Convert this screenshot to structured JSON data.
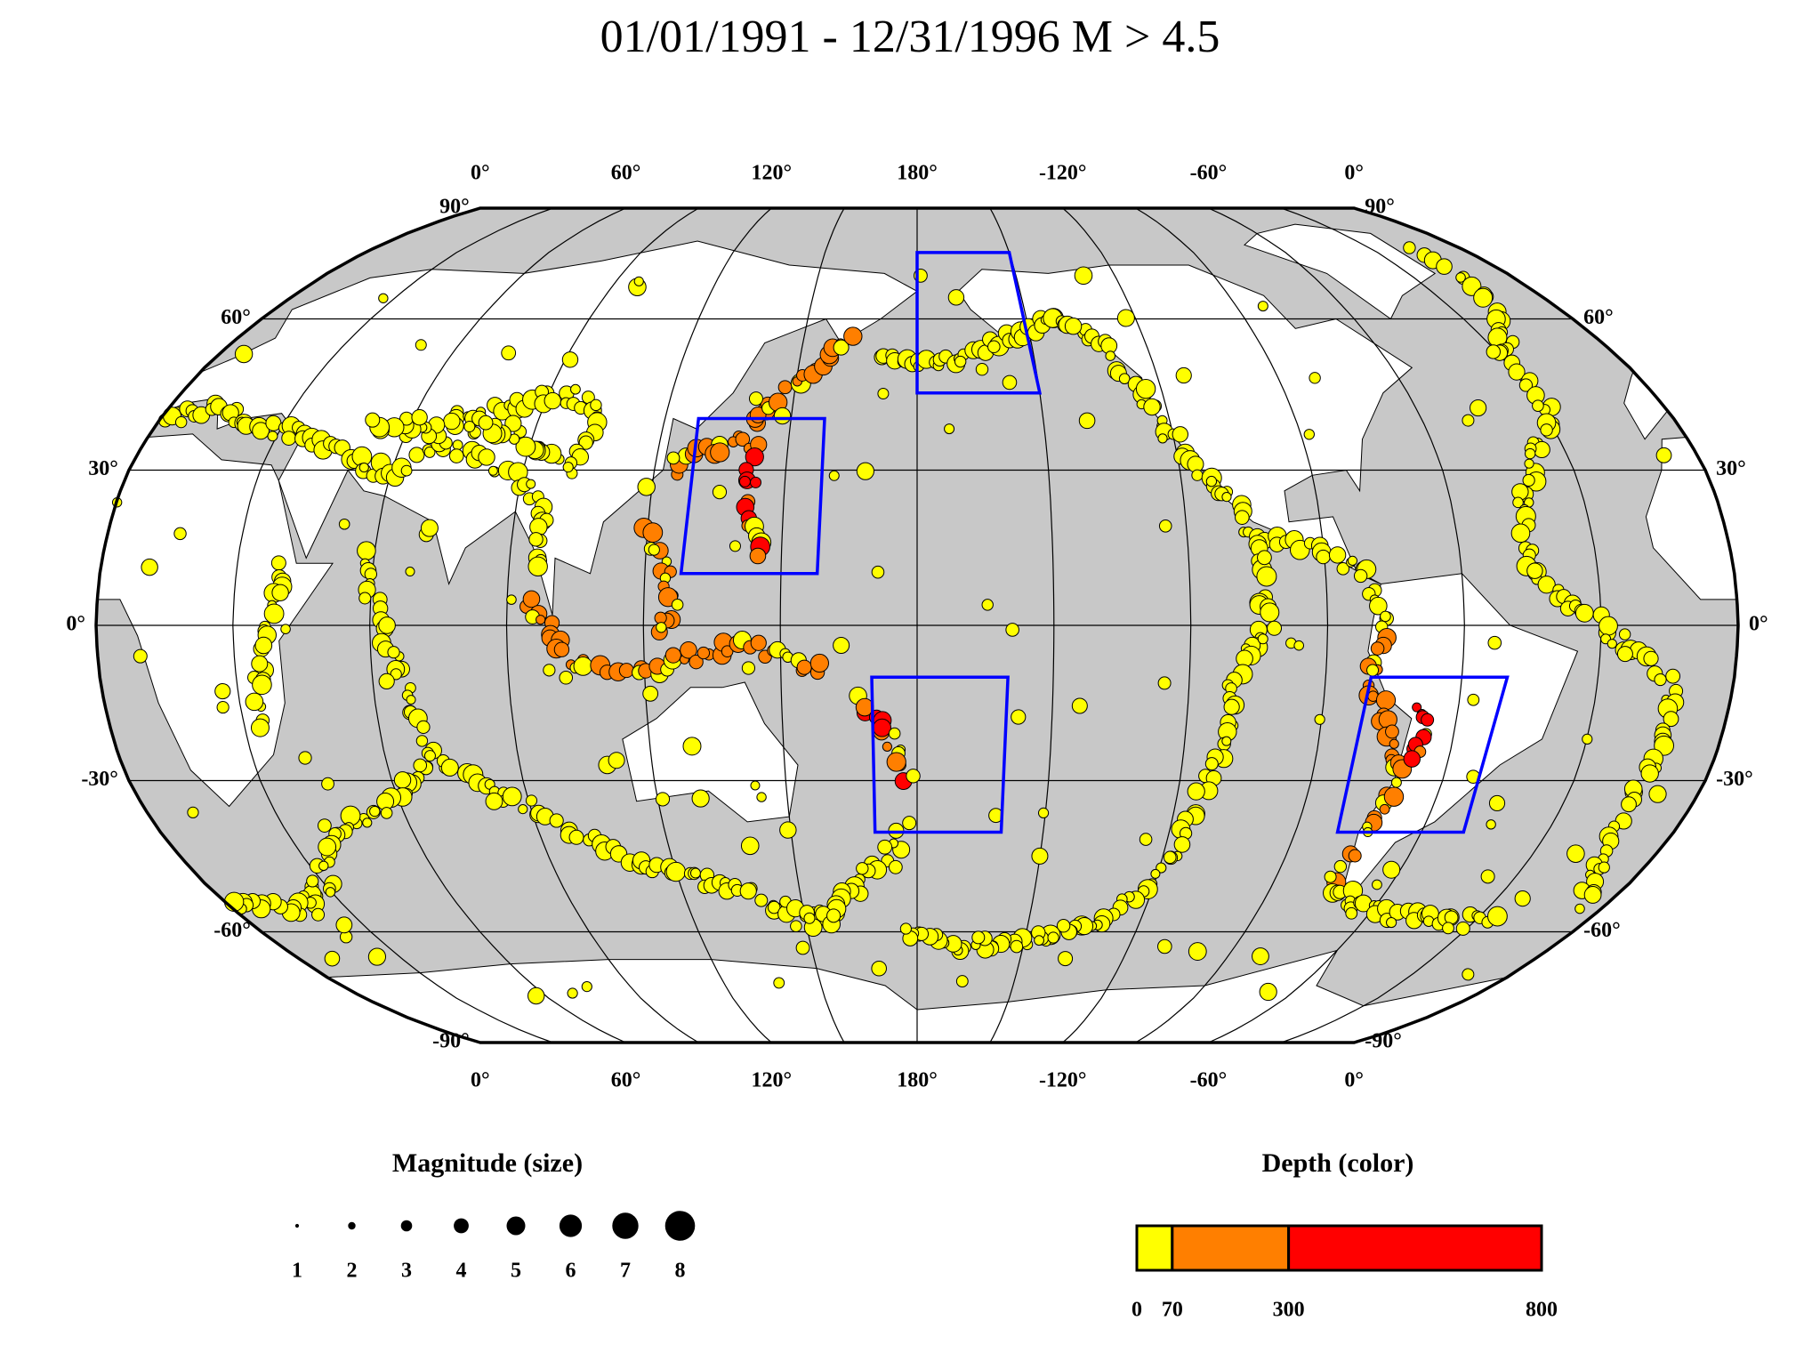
{
  "title": "01/01/1991 - 12/31/1996 M > 4.5",
  "map": {
    "longitude_labels": [
      "0°",
      "60°",
      "120°",
      "180°",
      "-120°",
      "-60°",
      "0°"
    ],
    "latitude_labels": [
      "90°",
      "60°",
      "30°",
      "0°",
      "-30°",
      "-60°",
      "-90°"
    ]
  },
  "magnitude_legend": {
    "title": "Magnitude (size)",
    "sizes": [
      1,
      2,
      3,
      4,
      5,
      6,
      7,
      8
    ]
  },
  "depth_legend": {
    "title": "Depth (color)",
    "breaks": [
      0,
      70,
      300,
      800
    ],
    "colors": [
      "#ffff00",
      "#ff7f00",
      "#ff0000"
    ]
  }
}
